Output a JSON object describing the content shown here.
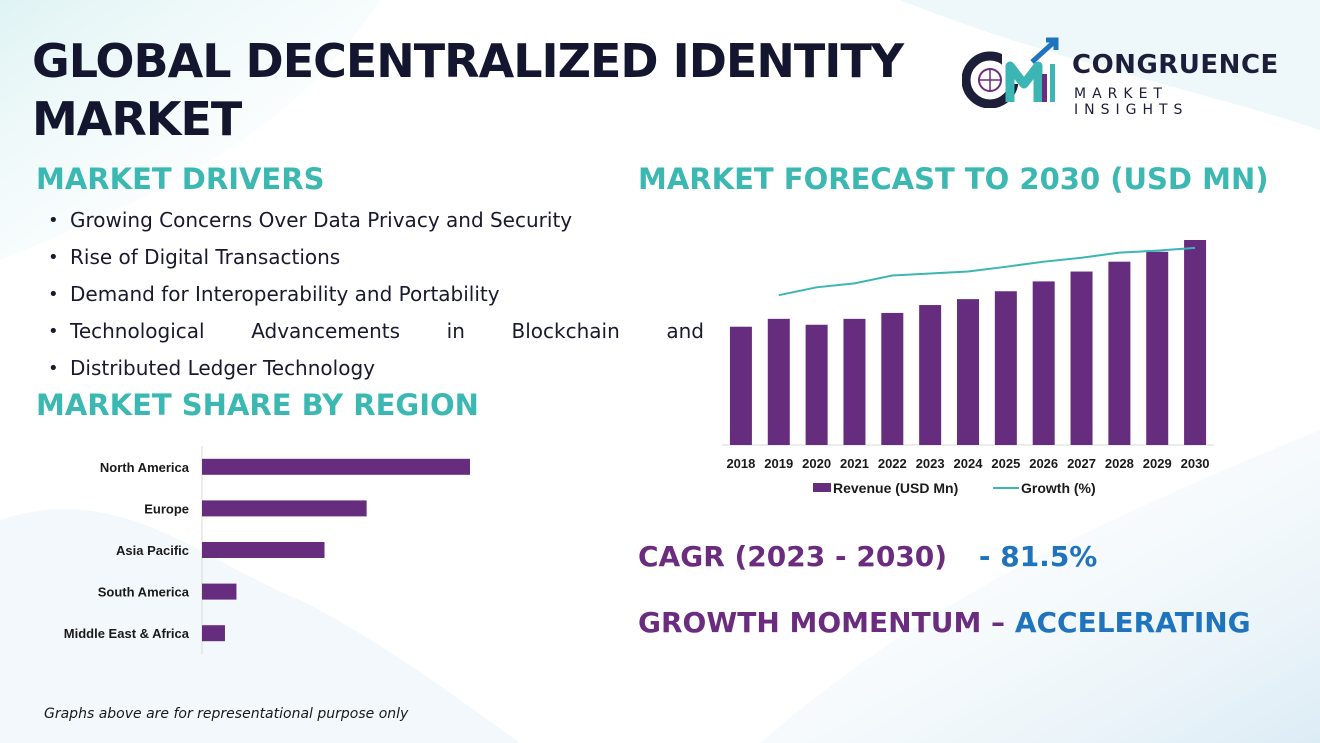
{
  "title": "GLOBAL DECENTRALIZED IDENTITY MARKET",
  "logo": {
    "name": "CONGRUENCE",
    "subtitle": "MARKET INSIGHTS",
    "monogram": "CM"
  },
  "drivers": {
    "heading": "MARKET DRIVERS",
    "items": [
      "Growing Concerns Over Data Privacy and Security",
      "Rise of Digital Transactions",
      "Demand for Interoperability and Portability",
      "Technological Advancements in Blockchain and",
      "Distributed Ledger Technology"
    ]
  },
  "forecast_heading": "MARKET FORECAST TO 2030 (USD MN)",
  "region_heading": "MARKET SHARE BY REGION",
  "cagr": {
    "label": "CAGR (2023 - 2030)",
    "value": "- 81.5%"
  },
  "momentum": {
    "label": "GROWTH MOMENTUM –",
    "value": "ACCELERATING"
  },
  "footnote": "Graphs above are for representational purpose only",
  "colors": {
    "bar": "#662d7e",
    "line": "#3bb6b4",
    "heading": "#3cb8b2",
    "title": "#14152f",
    "accent_blue": "#1f74bd"
  },
  "chart_data": [
    {
      "type": "bar",
      "categories": [
        "2018",
        "2019",
        "2020",
        "2021",
        "2022",
        "2023",
        "2024",
        "2025",
        "2026",
        "2027",
        "2028",
        "2029",
        "2030"
      ],
      "series": [
        {
          "name": "Revenue (USD Mn)",
          "type": "bar",
          "values": [
            30,
            32,
            30.5,
            32,
            33.5,
            35.5,
            37,
            39,
            41.5,
            44,
            46.5,
            49,
            52
          ]
        },
        {
          "name": "Growth (%)",
          "type": "line",
          "values": [
            null,
            38,
            40,
            41,
            43,
            43.5,
            44,
            45.2,
            46.5,
            47.5,
            48.8,
            49.3,
            50
          ]
        }
      ],
      "legend": "bottom",
      "grid": false,
      "ylim": [
        0,
        52
      ]
    },
    {
      "type": "bar",
      "orientation": "horizontal",
      "categories": [
        "North America",
        "Europe",
        "Asia Pacific",
        "South America",
        "Middle East & Africa"
      ],
      "values": [
        35,
        21.5,
        16,
        4.5,
        3
      ],
      "xlim": [
        0,
        40
      ],
      "grid": false
    }
  ]
}
